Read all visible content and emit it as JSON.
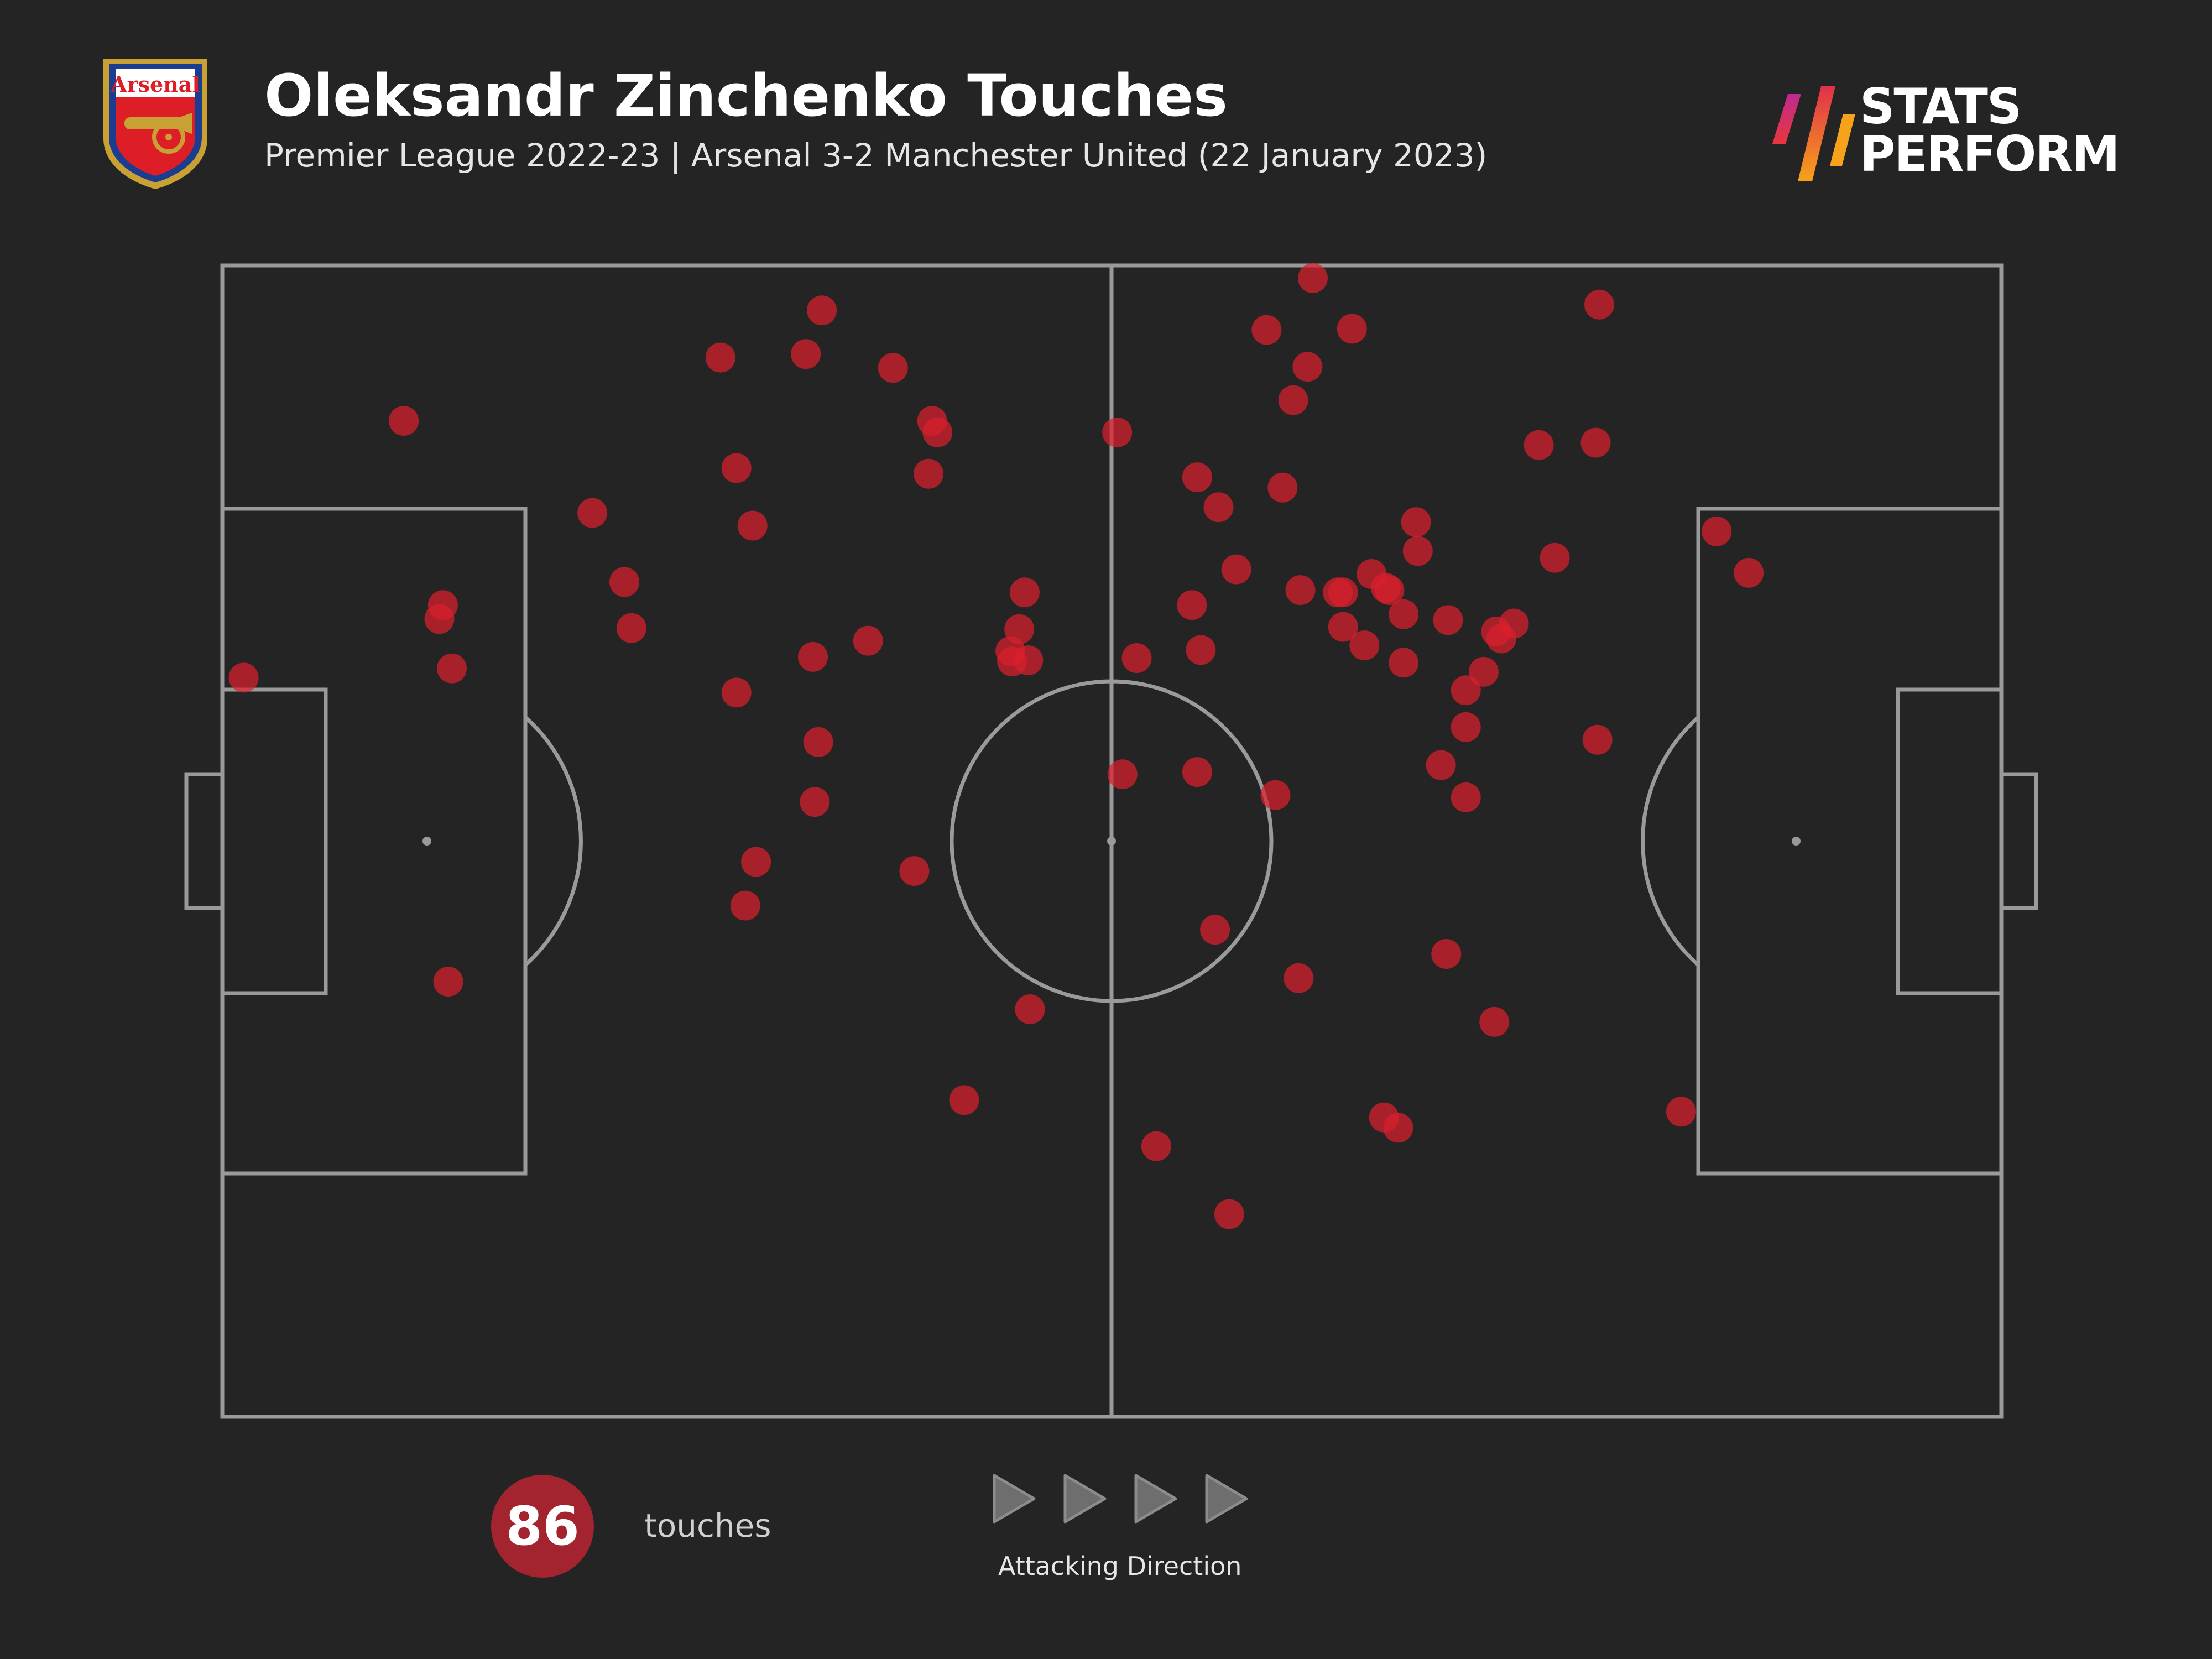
{
  "header": {
    "title": "Oleksandr Zinchenko Touches",
    "subtitle": "Premier League 2022-23 | Arsenal 3-2 Manchester United (22 January 2023)",
    "crest_text": "Arsenal",
    "crest_icon": "arsenal-crest-icon"
  },
  "brand": {
    "line1": "STATS",
    "line2": "PERFORM",
    "icon": "stats-perform-logo-icon"
  },
  "summary": {
    "count": "86",
    "count_label": "touches",
    "direction_label": "Attacking Direction",
    "direction_icon": "play-triangle-icon"
  },
  "colors": {
    "background": "#242424",
    "pitch_lines": "#9a9a9a",
    "touch_dot": "#d91f2c",
    "badge": "#a3232e"
  },
  "chart_data": {
    "type": "scatter",
    "title": "Oleksandr Zinchenko Touches",
    "xlabel": "",
    "ylabel": "",
    "xlim": [
      0,
      100
    ],
    "ylim": [
      0,
      100
    ],
    "grid": false,
    "series": [
      {
        "points": [
          [
            10.2,
            86.5
          ],
          [
            1.2,
            64.2
          ],
          [
            12.4,
            70.5
          ],
          [
            12.2,
            69.3
          ],
          [
            12.9,
            65.0
          ],
          [
            12.7,
            37.8
          ],
          [
            20.8,
            78.5
          ],
          [
            22.6,
            72.5
          ],
          [
            23.0,
            68.5
          ],
          [
            28.0,
            92.0
          ],
          [
            32.8,
            92.3
          ],
          [
            33.7,
            96.1
          ],
          [
            37.7,
            91.1
          ],
          [
            39.9,
            86.5
          ],
          [
            40.2,
            85.5
          ],
          [
            28.9,
            82.4
          ],
          [
            29.8,
            77.4
          ],
          [
            39.7,
            81.9
          ],
          [
            45.1,
            71.6
          ],
          [
            44.8,
            68.4
          ],
          [
            44.3,
            66.5
          ],
          [
            44.4,
            65.6
          ],
          [
            45.3,
            65.7
          ],
          [
            36.3,
            67.4
          ],
          [
            33.2,
            66.0
          ],
          [
            28.9,
            62.9
          ],
          [
            33.5,
            58.6
          ],
          [
            33.3,
            53.4
          ],
          [
            30.0,
            48.2
          ],
          [
            29.4,
            44.4
          ],
          [
            38.9,
            47.4
          ],
          [
            45.4,
            35.4
          ],
          [
            41.7,
            27.5
          ],
          [
            50.3,
            85.5
          ],
          [
            54.8,
            81.6
          ],
          [
            56.0,
            79.0
          ],
          [
            58.7,
            94.4
          ],
          [
            61.3,
            98.9
          ],
          [
            63.5,
            94.5
          ],
          [
            61.0,
            91.2
          ],
          [
            60.2,
            88.3
          ],
          [
            59.6,
            80.7
          ],
          [
            57.0,
            73.6
          ],
          [
            54.5,
            70.5
          ],
          [
            55.0,
            66.6
          ],
          [
            51.4,
            65.9
          ],
          [
            60.6,
            71.8
          ],
          [
            62.7,
            71.6
          ],
          [
            63.0,
            71.6
          ],
          [
            64.6,
            73.2
          ],
          [
            65.4,
            72.0
          ],
          [
            65.6,
            71.8
          ],
          [
            63.0,
            68.6
          ],
          [
            64.2,
            67.0
          ],
          [
            66.4,
            69.7
          ],
          [
            67.1,
            77.7
          ],
          [
            67.2,
            75.2
          ],
          [
            68.9,
            69.2
          ],
          [
            66.4,
            65.5
          ],
          [
            74.0,
            84.4
          ],
          [
            77.4,
            96.6
          ],
          [
            77.2,
            84.6
          ],
          [
            74.9,
            74.6
          ],
          [
            71.6,
            68.2
          ],
          [
            72.6,
            68.9
          ],
          [
            71.9,
            67.6
          ],
          [
            70.9,
            64.7
          ],
          [
            69.9,
            63.1
          ],
          [
            69.9,
            59.9
          ],
          [
            68.5,
            56.6
          ],
          [
            69.9,
            53.8
          ],
          [
            84.0,
            76.9
          ],
          [
            85.8,
            73.3
          ],
          [
            77.3,
            58.8
          ],
          [
            50.6,
            55.8
          ],
          [
            59.2,
            54.0
          ],
          [
            55.8,
            42.3
          ],
          [
            60.5,
            38.1
          ],
          [
            68.8,
            40.2
          ],
          [
            71.5,
            34.3
          ],
          [
            82.0,
            26.5
          ],
          [
            65.3,
            26.0
          ],
          [
            66.1,
            25.1
          ],
          [
            52.5,
            23.5
          ],
          [
            56.6,
            17.6
          ],
          [
            54.8,
            56.0
          ]
        ]
      }
    ]
  }
}
